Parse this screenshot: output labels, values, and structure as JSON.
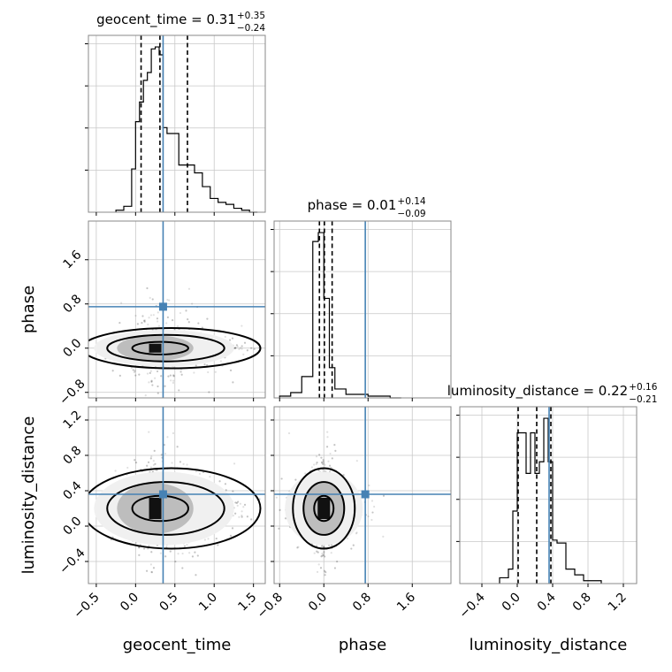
{
  "chart_data": {
    "type": "corner",
    "parameters": [
      {
        "name": "geocent_time",
        "label": "geocent_time",
        "range": [
          -0.6,
          1.65
        ],
        "ticks": [
          -0.5,
          0.0,
          0.5,
          1.0,
          1.5
        ],
        "tick_labels": [
          "−0.5",
          "0.0",
          "0.5",
          "1.0",
          "1.5"
        ],
        "truth": 0.35,
        "quantiles": [
          0.07,
          0.31,
          0.66
        ],
        "title_main": "geocent_time = 0.31",
        "title_plus": "+0.35",
        "title_minus": "−0.24",
        "histogram": {
          "edges": [
            -0.25,
            -0.15,
            -0.05,
            0.0,
            0.05,
            0.1,
            0.15,
            0.2,
            0.25,
            0.3,
            0.35,
            0.4,
            0.45,
            0.55,
            0.65,
            0.75,
            0.85,
            0.95,
            1.05,
            1.15,
            1.25,
            1.35,
            1.45,
            1.55
          ],
          "counts": [
            1,
            3,
            22,
            46,
            56,
            67,
            71,
            83,
            84,
            80,
            43,
            40,
            40,
            24,
            24,
            20,
            13,
            7,
            5,
            4,
            2,
            1,
            0
          ]
        }
      },
      {
        "name": "phase",
        "label": "phase",
        "range": [
          -0.9,
          2.3
        ],
        "ticks": [
          -0.8,
          0.0,
          0.8,
          1.6
        ],
        "tick_labels": [
          "−0.8",
          "0.0",
          "0.8",
          "1.6"
        ],
        "truth": 0.75,
        "quantiles": [
          -0.08,
          0.01,
          0.15
        ],
        "title_main": "phase = 0.01",
        "title_plus": "+0.14",
        "title_minus": "−0.09",
        "histogram": {
          "edges": [
            -0.8,
            -0.6,
            -0.4,
            -0.2,
            -0.1,
            0.0,
            0.1,
            0.2,
            0.4,
            0.6,
            0.8,
            1.0,
            1.2,
            1.4
          ],
          "counts": [
            1,
            3,
            12,
            88,
            93,
            56,
            17,
            5,
            2,
            2,
            1,
            1,
            0
          ]
        }
      },
      {
        "name": "luminosity_distance",
        "label": "luminosity_distance",
        "range": [
          -0.65,
          1.35
        ],
        "ticks": [
          -0.4,
          0.0,
          0.4,
          0.8,
          1.2
        ],
        "tick_labels": [
          "−0.4",
          "0.0",
          "0.4",
          "0.8",
          "1.2"
        ],
        "truth": 0.36,
        "quantiles": [
          0.01,
          0.22,
          0.38
        ],
        "title_main": "luminosity_distance = 0.22",
        "title_plus": "+0.16",
        "title_minus": "−0.21",
        "histogram": {
          "edges": [
            -0.2,
            -0.1,
            -0.05,
            0.0,
            0.1,
            0.15,
            0.2,
            0.25,
            0.3,
            0.35,
            0.4,
            0.45,
            0.55,
            0.65,
            0.75,
            0.85,
            0.95
          ],
          "counts": [
            2,
            5,
            25,
            52,
            38,
            52,
            38,
            42,
            57,
            42,
            15,
            14,
            5,
            3,
            1,
            1
          ]
        }
      }
    ],
    "grid": true,
    "truth_color": "#4682b4",
    "contour_levels": [
      "inner",
      "middle",
      "outer"
    ]
  }
}
